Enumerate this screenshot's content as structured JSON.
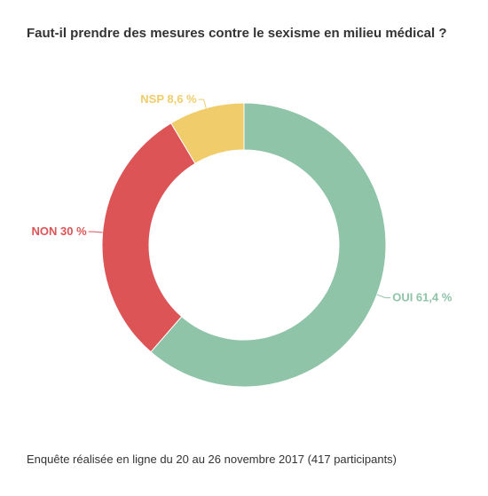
{
  "chart_data": {
    "type": "pie",
    "variant": "donut",
    "title": "Faut-il prendre des mesures contre le sexisme en milieu médical ?",
    "footer": "Enquête réalisée en ligne du 20 au 26 novembre 2017 (417 participants)",
    "slices": [
      {
        "name": "OUI",
        "value": 61.4,
        "label": "OUI 61,4 %",
        "color": "#8fc4a8"
      },
      {
        "name": "NON",
        "value": 30,
        "label": "NON 30 %",
        "color": "#dd5457"
      },
      {
        "name": "NSP",
        "value": 8.6,
        "label": "NSP 8,6 %",
        "color": "#f0cc6a"
      }
    ],
    "legend": "none",
    "grid": false
  }
}
